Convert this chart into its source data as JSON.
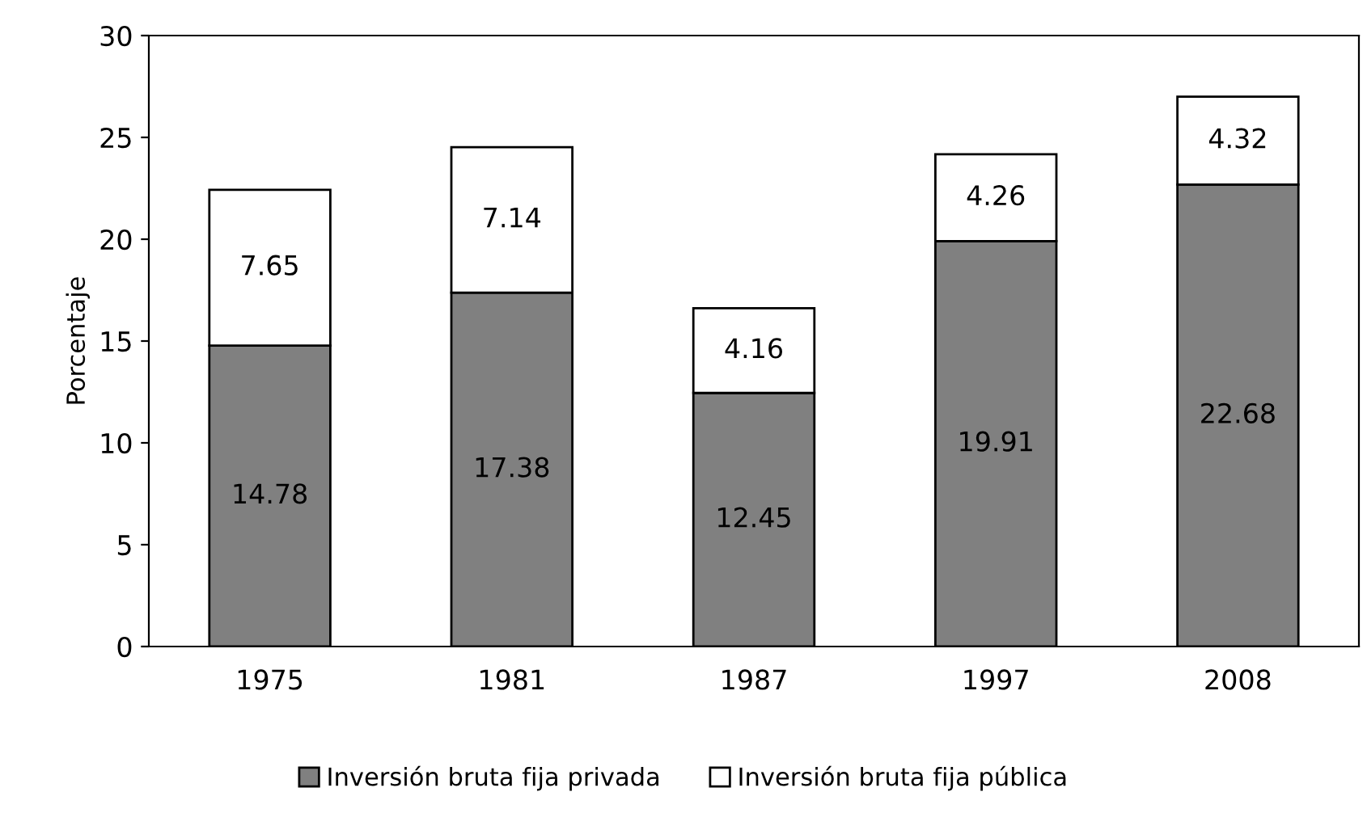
{
  "chart_data": {
    "type": "bar",
    "stacked": true,
    "ylabel": "Porcentaje",
    "categories": [
      "1975",
      "1981",
      "1987",
      "1997",
      "2008"
    ],
    "series": [
      {
        "name": "Inversión bruta fija privada",
        "color": "#808080",
        "values": [
          14.78,
          17.38,
          12.45,
          19.91,
          22.68
        ]
      },
      {
        "name": "Inversión bruta fija pública",
        "color": "#ffffff",
        "values": [
          7.65,
          7.14,
          4.16,
          4.26,
          4.32
        ]
      }
    ],
    "ylim": [
      0,
      30
    ],
    "yticks": [
      0,
      5,
      10,
      15,
      20,
      25,
      30
    ],
    "grid": false,
    "legend": "bottom",
    "data_labels": true
  }
}
